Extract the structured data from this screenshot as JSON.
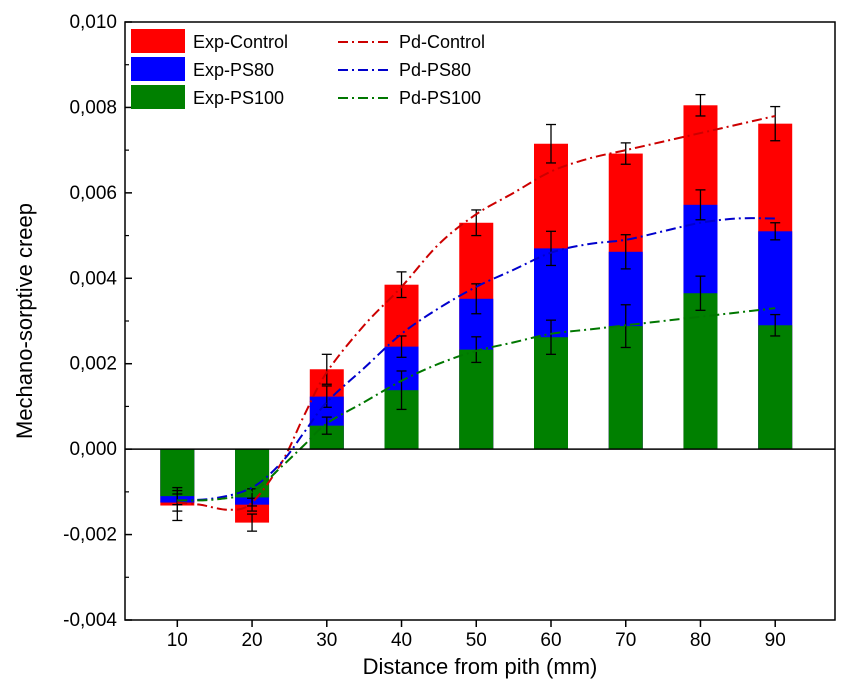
{
  "chart_data": {
    "type": "bar",
    "title": "",
    "xlabel": "Distance from pith (mm)",
    "ylabel": "Mechano-sorptive creep",
    "categories": [
      "10",
      "20",
      "30",
      "40",
      "50",
      "60",
      "70",
      "80",
      "90"
    ],
    "x": [
      10,
      20,
      30,
      40,
      50,
      60,
      70,
      80,
      90
    ],
    "xlim": [
      3,
      98
    ],
    "ylim": [
      -0.004,
      0.01
    ],
    "yticks": [
      -0.004,
      -0.002,
      0.0,
      0.002,
      0.004,
      0.006,
      0.008,
      0.01
    ],
    "ytick_labels": [
      "-0,004",
      "-0,002",
      "0,000",
      "0,002",
      "0,004",
      "0,006",
      "0,008",
      "0,010"
    ],
    "grid": false,
    "legend_placement": "top-left",
    "bar_series": [
      {
        "name": "Exp-Control",
        "color": "#ff0000",
        "values": [
          -0.00132,
          -0.00172,
          0.00187,
          0.00385,
          0.0053,
          0.00715,
          0.00692,
          0.00805,
          0.00762
        ],
        "errors": [
          0.00035,
          0.0002,
          0.00035,
          0.0003,
          0.0003,
          0.00045,
          0.00025,
          0.00025,
          0.0004
        ]
      },
      {
        "name": "Exp-PS80",
        "color": "#0000ff",
        "values": [
          -0.00125,
          -0.0013,
          0.00123,
          0.0024,
          0.00352,
          0.0047,
          0.00462,
          0.00572,
          0.0051
        ],
        "errors": [
          0.0002,
          0.00015,
          0.00025,
          0.00025,
          0.00035,
          0.0004,
          0.0004,
          0.00035,
          0.0002
        ]
      },
      {
        "name": "Exp-PS100",
        "color": "#008000",
        "values": [
          -0.0011,
          -0.00113,
          0.00055,
          0.00138,
          0.00233,
          0.00262,
          0.00288,
          0.00365,
          0.0029
        ],
        "errors": [
          0.0002,
          0.0002,
          0.0002,
          0.00045,
          0.0003,
          0.0004,
          0.0005,
          0.0004,
          0.00025
        ]
      }
    ],
    "line_series": [
      {
        "name": "Pd-Control",
        "color": "#cc0000",
        "x": [
          10,
          13,
          17,
          20,
          24,
          27,
          30,
          35,
          40,
          45,
          50,
          55,
          60,
          65,
          70,
          75,
          80,
          85,
          90
        ],
        "values": [
          -0.00125,
          -0.0013,
          -0.00142,
          -0.00125,
          -0.0003,
          0.0008,
          0.0018,
          0.0029,
          0.0038,
          0.0048,
          0.0055,
          0.006,
          0.0065,
          0.0068,
          0.007,
          0.0072,
          0.0074,
          0.0076,
          0.0078
        ]
      },
      {
        "name": "Pd-PS80",
        "color": "#0000cc",
        "x": [
          10,
          15,
          20,
          24,
          27,
          30,
          35,
          40,
          45,
          50,
          55,
          60,
          65,
          70,
          75,
          80,
          85,
          90
        ],
        "values": [
          -0.0012,
          -0.00115,
          -0.0009,
          -0.0003,
          0.0004,
          0.0011,
          0.0019,
          0.0027,
          0.0033,
          0.0038,
          0.0042,
          0.0046,
          0.0048,
          0.0049,
          0.0051,
          0.0053,
          0.0054,
          0.0054
        ]
      },
      {
        "name": "Pd-PS100",
        "color": "#007700",
        "x": [
          10,
          15,
          20,
          24,
          27,
          30,
          35,
          40,
          45,
          50,
          55,
          60,
          65,
          70,
          75,
          80,
          85,
          90
        ],
        "values": [
          -0.0012,
          -0.00118,
          -0.001,
          -0.0004,
          0.0001,
          0.0006,
          0.0011,
          0.0016,
          0.002,
          0.0023,
          0.0025,
          0.0027,
          0.0028,
          0.0029,
          0.003,
          0.0031,
          0.0032,
          0.0033
        ]
      }
    ]
  }
}
